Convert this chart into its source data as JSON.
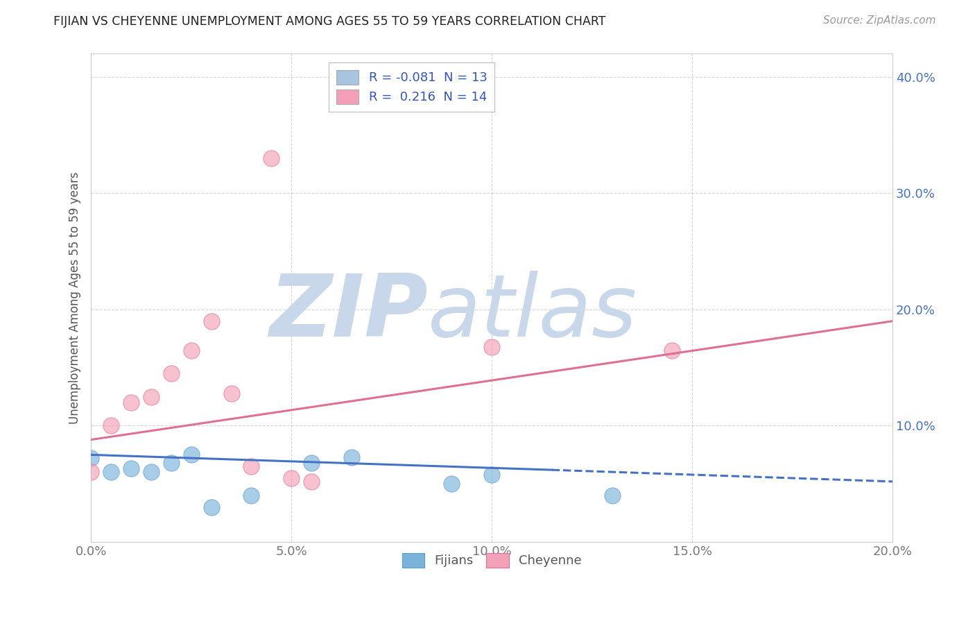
{
  "title": "FIJIAN VS CHEYENNE UNEMPLOYMENT AMONG AGES 55 TO 59 YEARS CORRELATION CHART",
  "source": "Source: ZipAtlas.com",
  "ylabel": "Unemployment Among Ages 55 to 59 years",
  "xlim": [
    0.0,
    0.2
  ],
  "ylim": [
    0.0,
    0.42
  ],
  "xticks": [
    0.0,
    0.05,
    0.1,
    0.15,
    0.2
  ],
  "xtick_labels": [
    "0.0%",
    "5.0%",
    "10.0%",
    "15.0%",
    "20.0%"
  ],
  "yticks": [
    0.0,
    0.1,
    0.2,
    0.3,
    0.4
  ],
  "ytick_labels": [
    "",
    "10.0%",
    "20.0%",
    "30.0%",
    "40.0%"
  ],
  "legend_items": [
    {
      "label": "R = -0.081  N = 13",
      "color": "#a8c4e0"
    },
    {
      "label": "R =  0.216  N = 14",
      "color": "#f4a0b8"
    }
  ],
  "fijians_scatter": [
    [
      0.0,
      0.072
    ],
    [
      0.005,
      0.06
    ],
    [
      0.01,
      0.063
    ],
    [
      0.015,
      0.06
    ],
    [
      0.02,
      0.068
    ],
    [
      0.025,
      0.075
    ],
    [
      0.03,
      0.03
    ],
    [
      0.04,
      0.04
    ],
    [
      0.055,
      0.068
    ],
    [
      0.065,
      0.073
    ],
    [
      0.09,
      0.05
    ],
    [
      0.1,
      0.058
    ],
    [
      0.13,
      0.04
    ]
  ],
  "cheyenne_scatter": [
    [
      0.0,
      0.06
    ],
    [
      0.005,
      0.1
    ],
    [
      0.01,
      0.12
    ],
    [
      0.015,
      0.125
    ],
    [
      0.02,
      0.145
    ],
    [
      0.025,
      0.165
    ],
    [
      0.03,
      0.19
    ],
    [
      0.035,
      0.128
    ],
    [
      0.04,
      0.065
    ],
    [
      0.05,
      0.055
    ],
    [
      0.055,
      0.052
    ],
    [
      0.045,
      0.33
    ],
    [
      0.1,
      0.168
    ],
    [
      0.145,
      0.165
    ]
  ],
  "fijians_line_solid": [
    [
      0.0,
      0.075
    ],
    [
      0.115,
      0.062
    ]
  ],
  "fijians_line_dashed": [
    [
      0.115,
      0.062
    ],
    [
      0.2,
      0.052
    ]
  ],
  "cheyenne_line": [
    [
      0.0,
      0.088
    ],
    [
      0.2,
      0.19
    ]
  ],
  "fijians_color": "#7ab3d9",
  "fijians_edge_color": "#5b9bd5",
  "cheyenne_color": "#f4a0b8",
  "cheyenne_edge_color": "#e07090",
  "fijians_line_color": "#4472c4",
  "cheyenne_line_color": "#e07090",
  "background_color": "#ffffff",
  "grid_color": "#bbbbbb",
  "ytick_color": "#4472c4",
  "watermark_zip": "ZIP",
  "watermark_atlas": "atlas",
  "watermark_color_zip": "#c8d8ea",
  "watermark_color_atlas": "#c8d8ea"
}
